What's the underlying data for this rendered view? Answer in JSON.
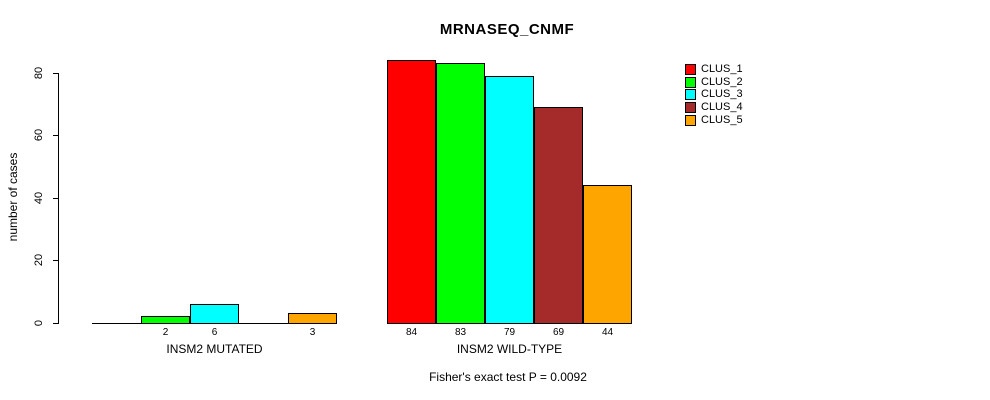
{
  "chart_data": {
    "type": "bar",
    "title": "MRNASEQ_CNMF",
    "ylabel": "number of cases",
    "xlabel": "",
    "annotation": "Fisher's exact test P = 0.0092",
    "ylim": [
      0,
      80
    ],
    "yticks": [
      0,
      20,
      40,
      60,
      80
    ],
    "grid": false,
    "legend_position": "right-outside",
    "categories": [
      "INSM2 MUTATED",
      "INSM2 WILD-TYPE"
    ],
    "series": [
      {
        "name": "CLUS_1",
        "color": "#FF0000",
        "values": [
          0,
          84
        ]
      },
      {
        "name": "CLUS_2",
        "color": "#00FF00",
        "values": [
          2,
          83
        ]
      },
      {
        "name": "CLUS_3",
        "color": "#00FFFF",
        "values": [
          6,
          79
        ]
      },
      {
        "name": "CLUS_4",
        "color": "#A52A2A",
        "values": [
          0,
          69
        ]
      },
      {
        "name": "CLUS_5",
        "color": "#FFA500",
        "values": [
          3,
          44
        ]
      }
    ],
    "visible_bar_labels": [
      "2",
      "6",
      "3",
      "84",
      "83",
      "79",
      "69",
      "44"
    ],
    "colors": {
      "background": "#FFFFFF",
      "axis": "#000000",
      "text": "#000000"
    }
  }
}
